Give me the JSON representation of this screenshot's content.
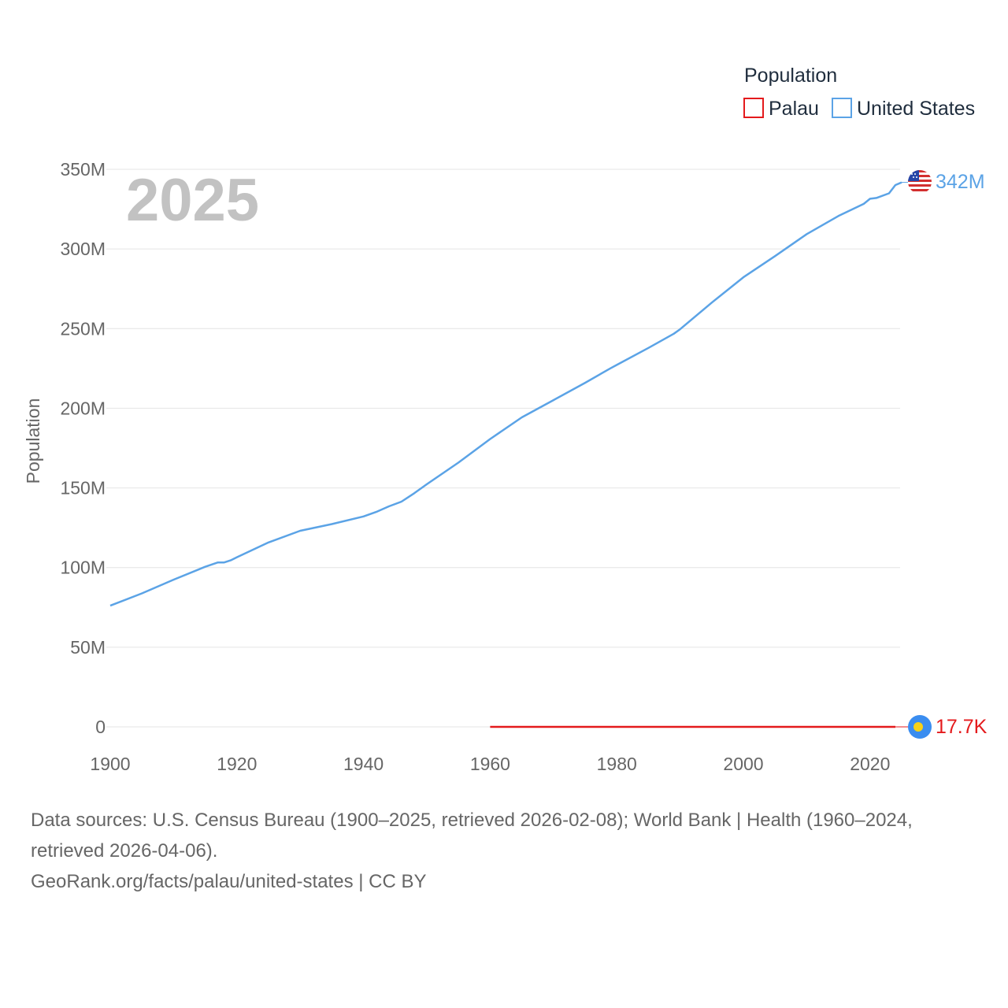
{
  "chart_data": {
    "type": "line",
    "title": "",
    "year_label": "2025",
    "ylabel": "Population",
    "xlabel": "",
    "xlim": [
      1900,
      2025
    ],
    "ylim": [
      0,
      350000000
    ],
    "x_ticks": [
      1900,
      1920,
      1940,
      1960,
      1980,
      2000,
      2020
    ],
    "y_ticks": [
      {
        "value": 0,
        "label": "0"
      },
      {
        "value": 50000000,
        "label": "50M"
      },
      {
        "value": 100000000,
        "label": "100M"
      },
      {
        "value": 150000000,
        "label": "150M"
      },
      {
        "value": 200000000,
        "label": "200M"
      },
      {
        "value": 250000000,
        "label": "250M"
      },
      {
        "value": 300000000,
        "label": "300M"
      },
      {
        "value": 350000000,
        "label": "350M"
      }
    ],
    "grid": true,
    "legend": {
      "title": "Population",
      "placement": "top-right"
    },
    "series": [
      {
        "name": "Palau",
        "color": "#e41a1c",
        "end_label": "17.7K",
        "end_icon": "palau-flag-icon",
        "x": [
          1960,
          1970,
          1980,
          1990,
          2000,
          2010,
          2020,
          2024
        ],
        "values": [
          9600,
          11500,
          12300,
          15100,
          19000,
          18500,
          18000,
          17700
        ]
      },
      {
        "name": "United States",
        "color": "#5ba3e6",
        "end_label": "342M",
        "end_icon": "us-flag-icon",
        "x": [
          1900,
          1905,
          1910,
          1915,
          1917,
          1918,
          1919,
          1920,
          1925,
          1930,
          1935,
          1940,
          1942,
          1944,
          1946,
          1948,
          1950,
          1955,
          1960,
          1965,
          1970,
          1975,
          1979,
          1980,
          1985,
          1989,
          1990,
          1995,
          2000,
          2005,
          2010,
          2015,
          2019,
          2020,
          2021,
          2023,
          2024,
          2025
        ],
        "values": [
          76100000,
          83800000,
          92400000,
          100500000,
          103200000,
          103200000,
          104500000,
          106500000,
          115800000,
          123100000,
          127300000,
          132100000,
          134900000,
          138400000,
          141400000,
          146600000,
          152300000,
          165900000,
          180700000,
          194300000,
          205100000,
          216000000,
          225100000,
          227200000,
          237900000,
          246800000,
          249600000,
          266300000,
          282200000,
          295500000,
          309300000,
          320700000,
          328300000,
          331500000,
          332000000,
          334900000,
          340100000,
          341800000
        ]
      }
    ]
  },
  "footer": {
    "sources": "Data sources: U.S. Census Bureau (1900–2025, retrieved 2026-02-08); World Bank | Health (1960–2024, retrieved 2026-04-06).",
    "credit": "GeoRank.org/facts/palau/united-states | CC BY"
  }
}
